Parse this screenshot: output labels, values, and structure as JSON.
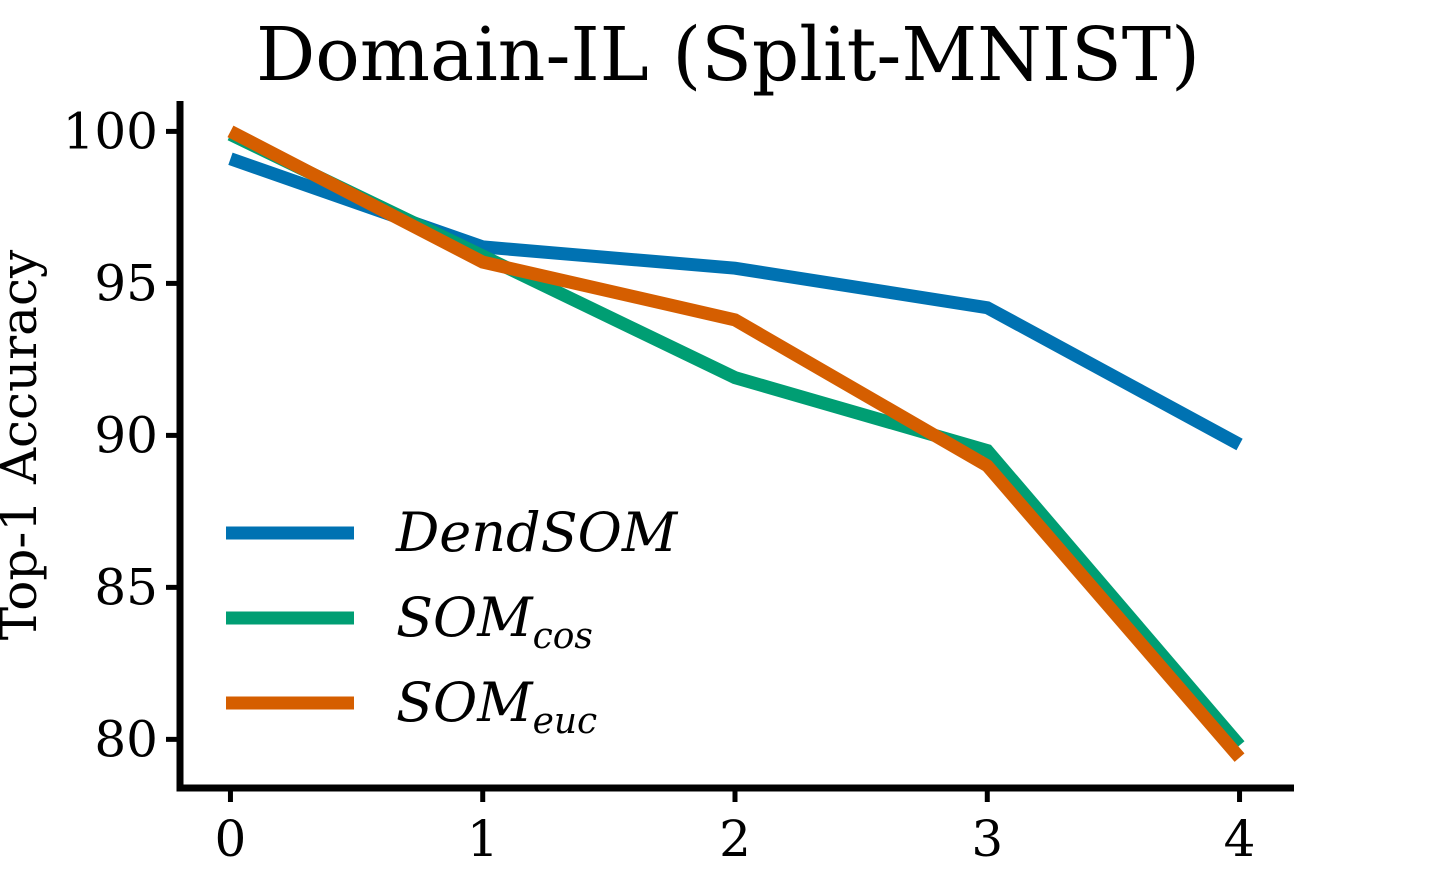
{
  "chart_data": {
    "type": "line",
    "title": "Domain-IL (Split-MNIST)",
    "xlabel": "",
    "ylabel": "Top-1 Accuracy",
    "x": [
      0,
      1,
      2,
      3,
      4
    ],
    "xlim": [
      -0.2,
      4.2
    ],
    "ylim": [
      78.4,
      101
    ],
    "x_ticks": [
      "0",
      "1",
      "2",
      "3",
      "4"
    ],
    "y_ticks": [
      "80",
      "85",
      "90",
      "95",
      "100"
    ],
    "y_tick_values": [
      80,
      85,
      90,
      95,
      100
    ],
    "grid": false,
    "legend_position": "lower-left",
    "series": [
      {
        "name": "DendSOM",
        "label_main": "DendSOM",
        "label_sub": "",
        "color": "#0072B2",
        "values": [
          99.1,
          96.2,
          95.5,
          94.2,
          89.7
        ]
      },
      {
        "name": "SOM_cos",
        "label_main": "SOM",
        "label_sub": "cos",
        "color": "#009E73",
        "values": [
          99.9,
          95.9,
          91.9,
          89.5,
          79.8
        ]
      },
      {
        "name": "SOM_euc",
        "label_main": "SOM",
        "label_sub": "euc",
        "color": "#D55E00",
        "values": [
          100.0,
          95.7,
          93.8,
          89.0,
          79.4
        ]
      }
    ]
  }
}
